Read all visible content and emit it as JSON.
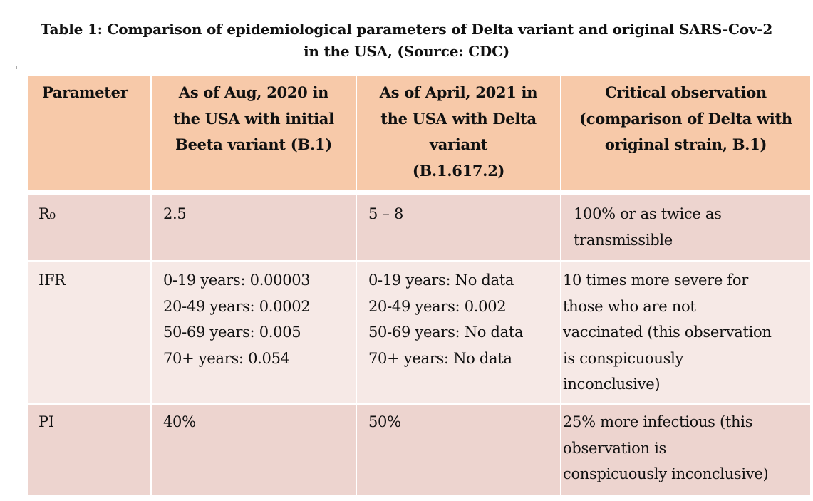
{
  "caption": {
    "line1": "Table 1: Comparison of epidemiological parameters of Delta variant and original SARS-Cov-2",
    "line2": "in the USA, (Source: CDC)"
  },
  "table": {
    "headers": [
      [
        "Parameter"
      ],
      [
        "As of Aug, 2020 in",
        "the USA with initial",
        "Beeta variant (B.1)"
      ],
      [
        "As of April, 2021 in",
        "the USA with Delta",
        "variant",
        "(B.1.617.2)"
      ],
      [
        "Critical observation",
        "(comparison of Delta with",
        "original strain, B.1)"
      ]
    ],
    "rows": [
      {
        "parameter": [
          "R₀"
        ],
        "aug2020": [
          "2.5"
        ],
        "apr2021": [
          "5 – 8"
        ],
        "observation": [
          "100% or as twice as",
          "transmissible"
        ]
      },
      {
        "parameter": [
          "IFR"
        ],
        "aug2020": [
          "0-19 years: 0.00003",
          "20-49 years: 0.0002",
          "50-69 years: 0.005",
          "70+ years: 0.054"
        ],
        "apr2021": [
          "0-19 years: No data",
          "20-49 years: 0.002",
          "50-69 years: No data",
          "70+ years: No data"
        ],
        "observation": [
          "10 times more severe for",
          "those who are not",
          "vaccinated (this observation",
          "is conspicuously",
          "inconclusive)"
        ]
      },
      {
        "parameter": [
          "PI"
        ],
        "aug2020": [
          "40%"
        ],
        "apr2021": [
          "50%"
        ],
        "observation": [
          "25% more infectious (this",
          "observation is",
          "conspicuously inconclusive)"
        ]
      }
    ]
  }
}
